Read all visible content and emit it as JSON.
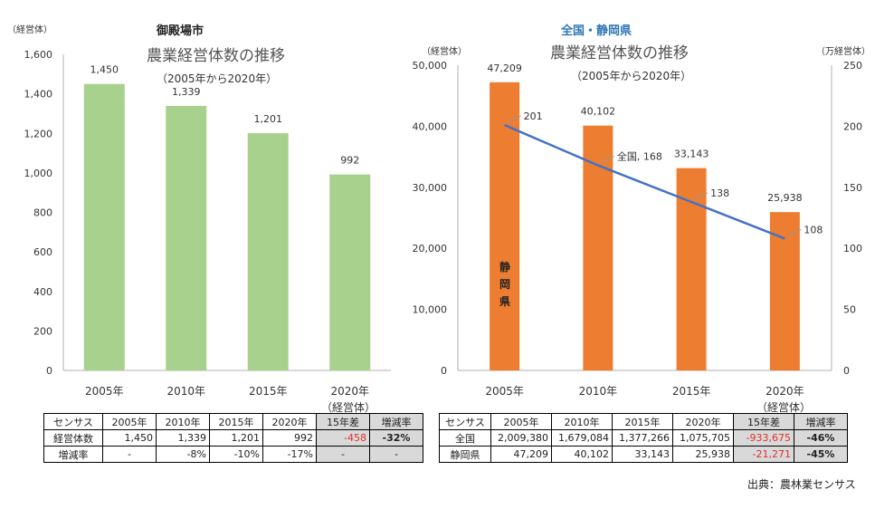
{
  "left": {
    "panel_title": "御殿場市",
    "unit_label": "（経営体）",
    "chart_title": "農業経営体数の推移",
    "chart_subtitle": "（2005年から2020年）",
    "table_unit": "（経営体）",
    "table": {
      "headers": [
        "センサス",
        "2005年",
        "2010年",
        "2015年",
        "2020年",
        "15年差",
        "増減率"
      ],
      "rows": [
        [
          "経営体数",
          "1,450",
          "1,339",
          "1,201",
          "992",
          "-458",
          "-32%"
        ],
        [
          "増減率",
          "-",
          "-8%",
          "-10%",
          "-17%",
          "-",
          "-"
        ]
      ]
    }
  },
  "right": {
    "panel_title": "全国・静岡県",
    "unit_left": "（経営体）",
    "unit_right": "（万経営体）",
    "chart_title": "農業経営体数の推移",
    "chart_subtitle": "（2005年から2020年）",
    "bar_label": "静岡県",
    "table_unit": "（経営体）",
    "table": {
      "headers": [
        "センサス",
        "2005年",
        "2010年",
        "2015年",
        "2020年",
        "15年差",
        "増減率"
      ],
      "rows": [
        [
          "全国",
          "2,009,380",
          "1,679,084",
          "1,377,266",
          "1,075,705",
          "-933,675",
          "-46%"
        ],
        [
          "静岡県",
          "47,209",
          "40,102",
          "33,143",
          "25,938",
          "-21,271",
          "-45%"
        ]
      ]
    }
  },
  "source": "出典：農林業センサス",
  "chart_data": [
    {
      "type": "bar",
      "title": "農業経営体数の推移",
      "subtitle": "（2005年から2020年）",
      "categories": [
        "2005年",
        "2010年",
        "2015年",
        "2020年"
      ],
      "series": [
        {
          "name": "御殿場市",
          "values": [
            1450,
            1339,
            1201,
            992
          ],
          "labels": [
            "1,450",
            "1,339",
            "1,201",
            "992"
          ],
          "color": "#a9d18e"
        }
      ],
      "ylabel": "（経営体）",
      "ylim": [
        0,
        1600
      ],
      "yticks": [
        0,
        200,
        400,
        600,
        800,
        1000,
        1200,
        1400,
        1600
      ],
      "ytick_labels": [
        "0",
        "200",
        "400",
        "600",
        "800",
        "1,000",
        "1,200",
        "1,400",
        "1,600"
      ]
    },
    {
      "type": "bar+line",
      "title": "農業経営体数の推移",
      "subtitle": "（2005年から2020年）",
      "categories": [
        "2005年",
        "2010年",
        "2015年",
        "2020年"
      ],
      "series": [
        {
          "name": "静岡県",
          "type": "bar",
          "axis": "left",
          "values": [
            47209,
            40102,
            33143,
            25938
          ],
          "labels": [
            "47,209",
            "40,102",
            "33,143",
            "25,938"
          ],
          "color": "#ed7d31"
        },
        {
          "name": "全国",
          "type": "line",
          "axis": "right",
          "values": [
            201,
            168,
            138,
            108
          ],
          "labels": [
            "201",
            "全国, 168",
            "138",
            "108"
          ],
          "color": "#4472c4"
        }
      ],
      "ylabel": "（経営体）",
      "ylim": [
        0,
        50000
      ],
      "yticks": [
        0,
        10000,
        20000,
        30000,
        40000,
        50000
      ],
      "ytick_labels": [
        "0",
        "10,000",
        "20,000",
        "30,000",
        "40,000",
        "50,000"
      ],
      "y2label": "（万経営体）",
      "y2lim": [
        0,
        250
      ],
      "y2ticks": [
        0,
        50,
        100,
        150,
        200,
        250
      ],
      "y2tick_labels": [
        "0",
        "50",
        "100",
        "150",
        "200",
        "250"
      ]
    }
  ]
}
